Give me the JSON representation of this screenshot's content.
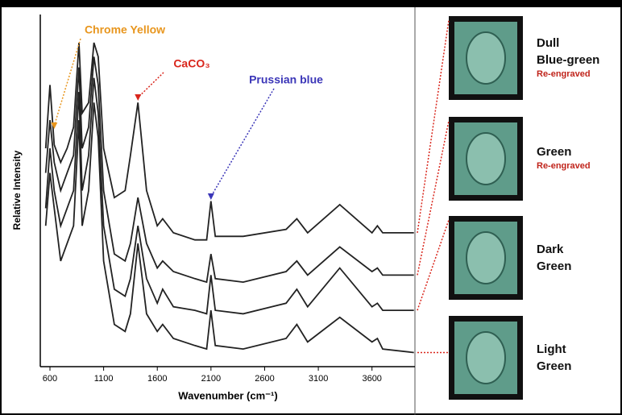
{
  "chart_data": {
    "type": "line",
    "annotations": [
      {
        "text": "Chrome Yellow",
        "color": "#e8961e",
        "x": 640
      },
      {
        "text": "CaCO₃",
        "color": "#d9261c",
        "x": 1420
      },
      {
        "text": "Prussian blue",
        "color": "#3b36b8",
        "x": 2100
      }
    ],
    "ylabel": "Relative Intensity",
    "xlabel": "Wavenumber (cm⁻¹)",
    "x": [
      560,
      600,
      640,
      700,
      760,
      820,
      870,
      900,
      960,
      1010,
      1050,
      1100,
      1200,
      1300,
      1350,
      1420,
      1500,
      1600,
      1650,
      1750,
      1950,
      2060,
      2100,
      2140,
      2400,
      2800,
      2900,
      3000,
      3300,
      3600,
      3650,
      3700,
      3990
    ],
    "series": [
      {
        "color": "#222222",
        "values": [
          62,
          80,
          63,
          58,
          62,
          68,
          92,
          72,
          75,
          92,
          88,
          62,
          48,
          50,
          60,
          75,
          50,
          40,
          42,
          38,
          36,
          36,
          47,
          37,
          37,
          39,
          42,
          38,
          46,
          38,
          40,
          38,
          38
        ]
      },
      {
        "color": "#222222",
        "values": [
          55,
          70,
          58,
          50,
          55,
          60,
          85,
          62,
          68,
          88,
          80,
          50,
          32,
          30,
          35,
          48,
          35,
          28,
          30,
          27,
          25,
          24,
          32,
          25,
          24,
          27,
          30,
          26,
          34,
          27,
          28,
          26,
          26
        ]
      },
      {
        "color": "#222222",
        "values": [
          45,
          62,
          50,
          40,
          45,
          50,
          78,
          50,
          60,
          82,
          72,
          40,
          22,
          20,
          25,
          40,
          25,
          18,
          22,
          17,
          16,
          15,
          26,
          16,
          15,
          18,
          22,
          17,
          28,
          17,
          18,
          16,
          16
        ]
      },
      {
        "color": "#222222",
        "values": [
          40,
          55,
          45,
          30,
          35,
          40,
          70,
          40,
          50,
          75,
          65,
          30,
          12,
          10,
          15,
          35,
          15,
          10,
          12,
          8,
          6,
          5,
          16,
          6,
          5,
          8,
          12,
          7,
          14,
          7,
          8,
          5,
          4
        ]
      }
    ],
    "xlim": [
      510,
      4000
    ],
    "xticks": [
      600,
      1100,
      1600,
      2100,
      2600,
      3100,
      3600
    ],
    "ylim": [
      0,
      100
    ],
    "stamps": [
      {
        "lines": [
          "Dull",
          "Blue-green"
        ],
        "note": "Re-engraved"
      },
      {
        "lines": [
          "Green"
        ],
        "note": "Re-engraved"
      },
      {
        "lines": [
          "Dark",
          "Green"
        ]
      },
      {
        "lines": [
          "Light",
          "Green"
        ]
      }
    ]
  }
}
